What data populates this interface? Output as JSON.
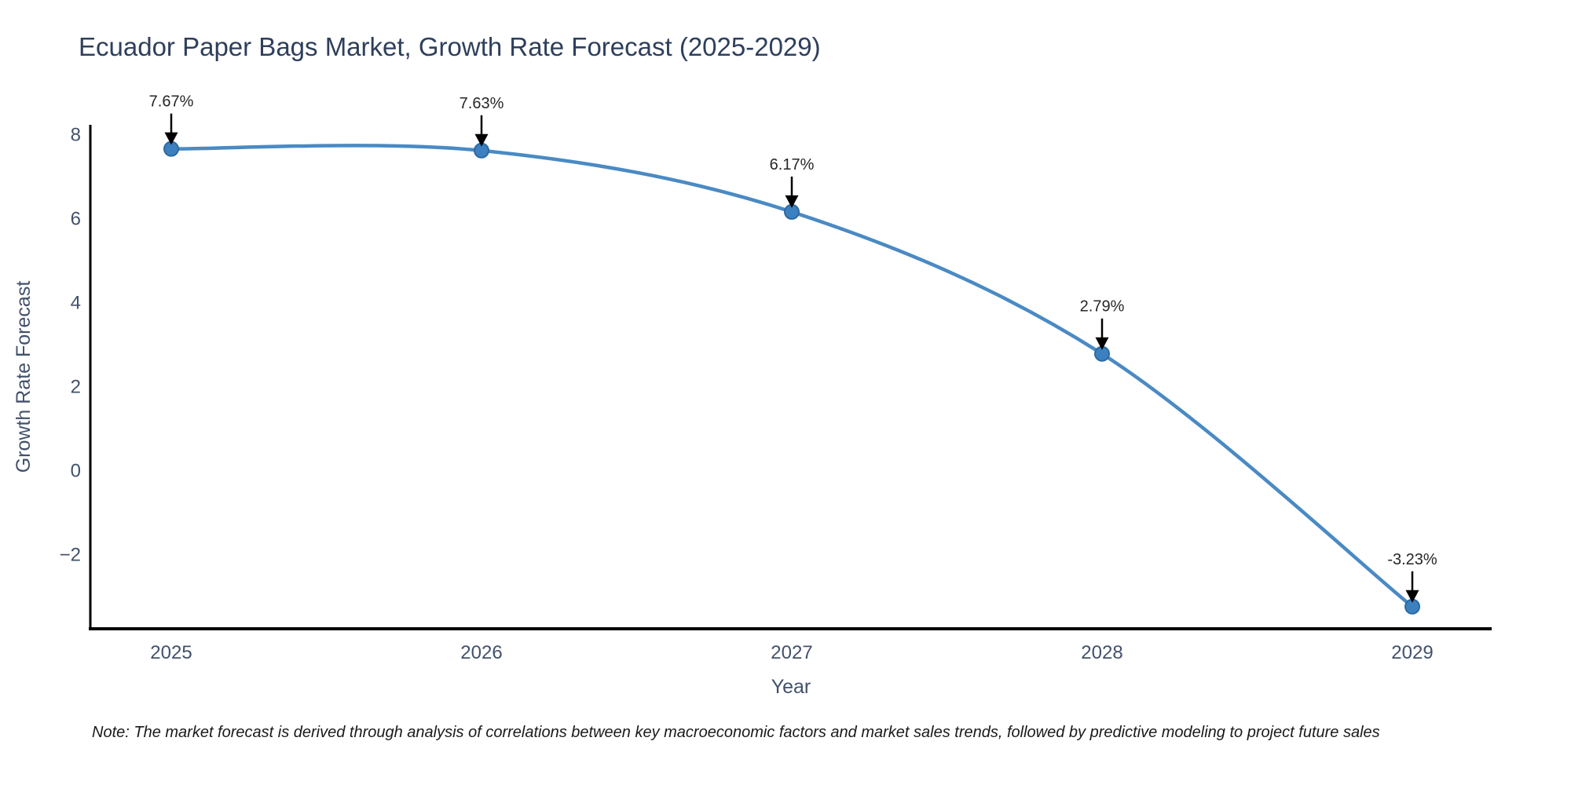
{
  "figure": {
    "title": "Ecuador Paper Bags Market, Growth Rate Forecast (2025-2029)",
    "note": "Note: The market forecast is derived through analysis of correlations between key macroeconomic factors and market sales trends, followed by predictive modeling to project future sales"
  },
  "chart_data": {
    "type": "line",
    "title": "Ecuador Paper Bags Market, Growth Rate Forecast (2025-2029)",
    "xlabel": "Year",
    "ylabel": "Growth Rate Forecast",
    "x": [
      2025,
      2026,
      2027,
      2028,
      2029
    ],
    "y": [
      7.67,
      7.63,
      6.17,
      2.79,
      -3.23
    ],
    "point_labels": [
      "7.67%",
      "7.63%",
      "6.17%",
      "2.79%",
      "-3.23%"
    ],
    "x_tick_labels": [
      "2025",
      "2026",
      "2027",
      "2028",
      "2029"
    ],
    "y_ticks": [
      8,
      6,
      4,
      2,
      0,
      -2
    ],
    "xlim": [
      2024.74,
      2029.26
    ],
    "ylim": [
      -3.76,
      8.24
    ],
    "line_shape": "spline",
    "grid": false,
    "legend": null,
    "colors": {
      "line": "#4a8ac4",
      "marker_fill": "#3d80bf",
      "marker_edge": "#2b6aa3",
      "axis_line": "#000000",
      "title": "#2e3f5c",
      "tick_label": "#42516c",
      "axis_title": "#42516c",
      "annotation_text": "#262626",
      "annotation_arrow": "#000000",
      "background": "#ffffff"
    }
  }
}
